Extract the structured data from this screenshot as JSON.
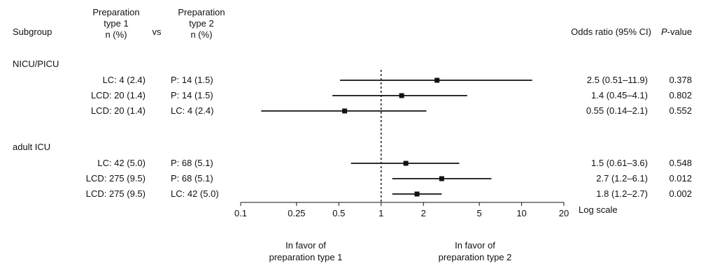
{
  "chart_data": {
    "type": "forest",
    "headers": {
      "subgroup": "Subgroup",
      "prep1": [
        "Preparation",
        "type 1",
        "n (%)"
      ],
      "vs": "vs",
      "prep2": [
        "Preparation",
        "type 2",
        "n (%)"
      ],
      "or": "Odds ratio (95% CI)",
      "p_italic": "P",
      "p_rest": "-value"
    },
    "groups": [
      {
        "name": "NICU/PICU",
        "rows": [
          {
            "prep1": "LC: 4 (2.4)",
            "prep2": "P: 14 (1.5)",
            "or": 2.5,
            "lo": 0.51,
            "hi": 11.9,
            "or_label": "2.5 (0.51–11.9)",
            "p": "0.378"
          },
          {
            "prep1": "LCD: 20 (1.4)",
            "prep2": "P: 14 (1.5)",
            "or": 1.4,
            "lo": 0.45,
            "hi": 4.1,
            "or_label": "1.4 (0.45–4.1)",
            "p": "0.802"
          },
          {
            "prep1": "LCD: 20 (1.4)",
            "prep2": "LC: 4 (2.4)",
            "or": 0.55,
            "lo": 0.14,
            "hi": 2.1,
            "or_label": "0.55 (0.14–2.1)",
            "p": "0.552"
          }
        ]
      },
      {
        "name": "adult ICU",
        "rows": [
          {
            "prep1": "LC: 42 (5.0)",
            "prep2": "P: 68 (5.1)",
            "or": 1.5,
            "lo": 0.61,
            "hi": 3.6,
            "or_label": "1.5 (0.61–3.6)",
            "p": "0.548"
          },
          {
            "prep1": "LCD: 275 (9.5)",
            "prep2": "P: 68 (5.1)",
            "or": 2.7,
            "lo": 1.2,
            "hi": 6.1,
            "or_label": "2.7 (1.2–6.1)",
            "p": "0.012"
          },
          {
            "prep1": "LCD: 275 (9.5)",
            "prep2": "LC: 42 (5.0)",
            "or": 1.8,
            "lo": 1.2,
            "hi": 2.7,
            "or_label": "1.8 (1.2–2.7)",
            "p": "0.002"
          }
        ]
      }
    ],
    "x_scale": "log",
    "xlim": [
      0.1,
      20
    ],
    "x_ticks": [
      0.1,
      0.25,
      0.5,
      1,
      2,
      5,
      10,
      20
    ],
    "x_tick_labels": [
      "0.1",
      "0.25",
      "0.5",
      "1",
      "2",
      "5",
      "10",
      "20"
    ],
    "reference_line": 1,
    "axis_note": "Log scale",
    "favor_left": [
      "In favor of",
      "preparation type 1"
    ],
    "favor_right": [
      "In favor of",
      "preparation type 2"
    ]
  }
}
